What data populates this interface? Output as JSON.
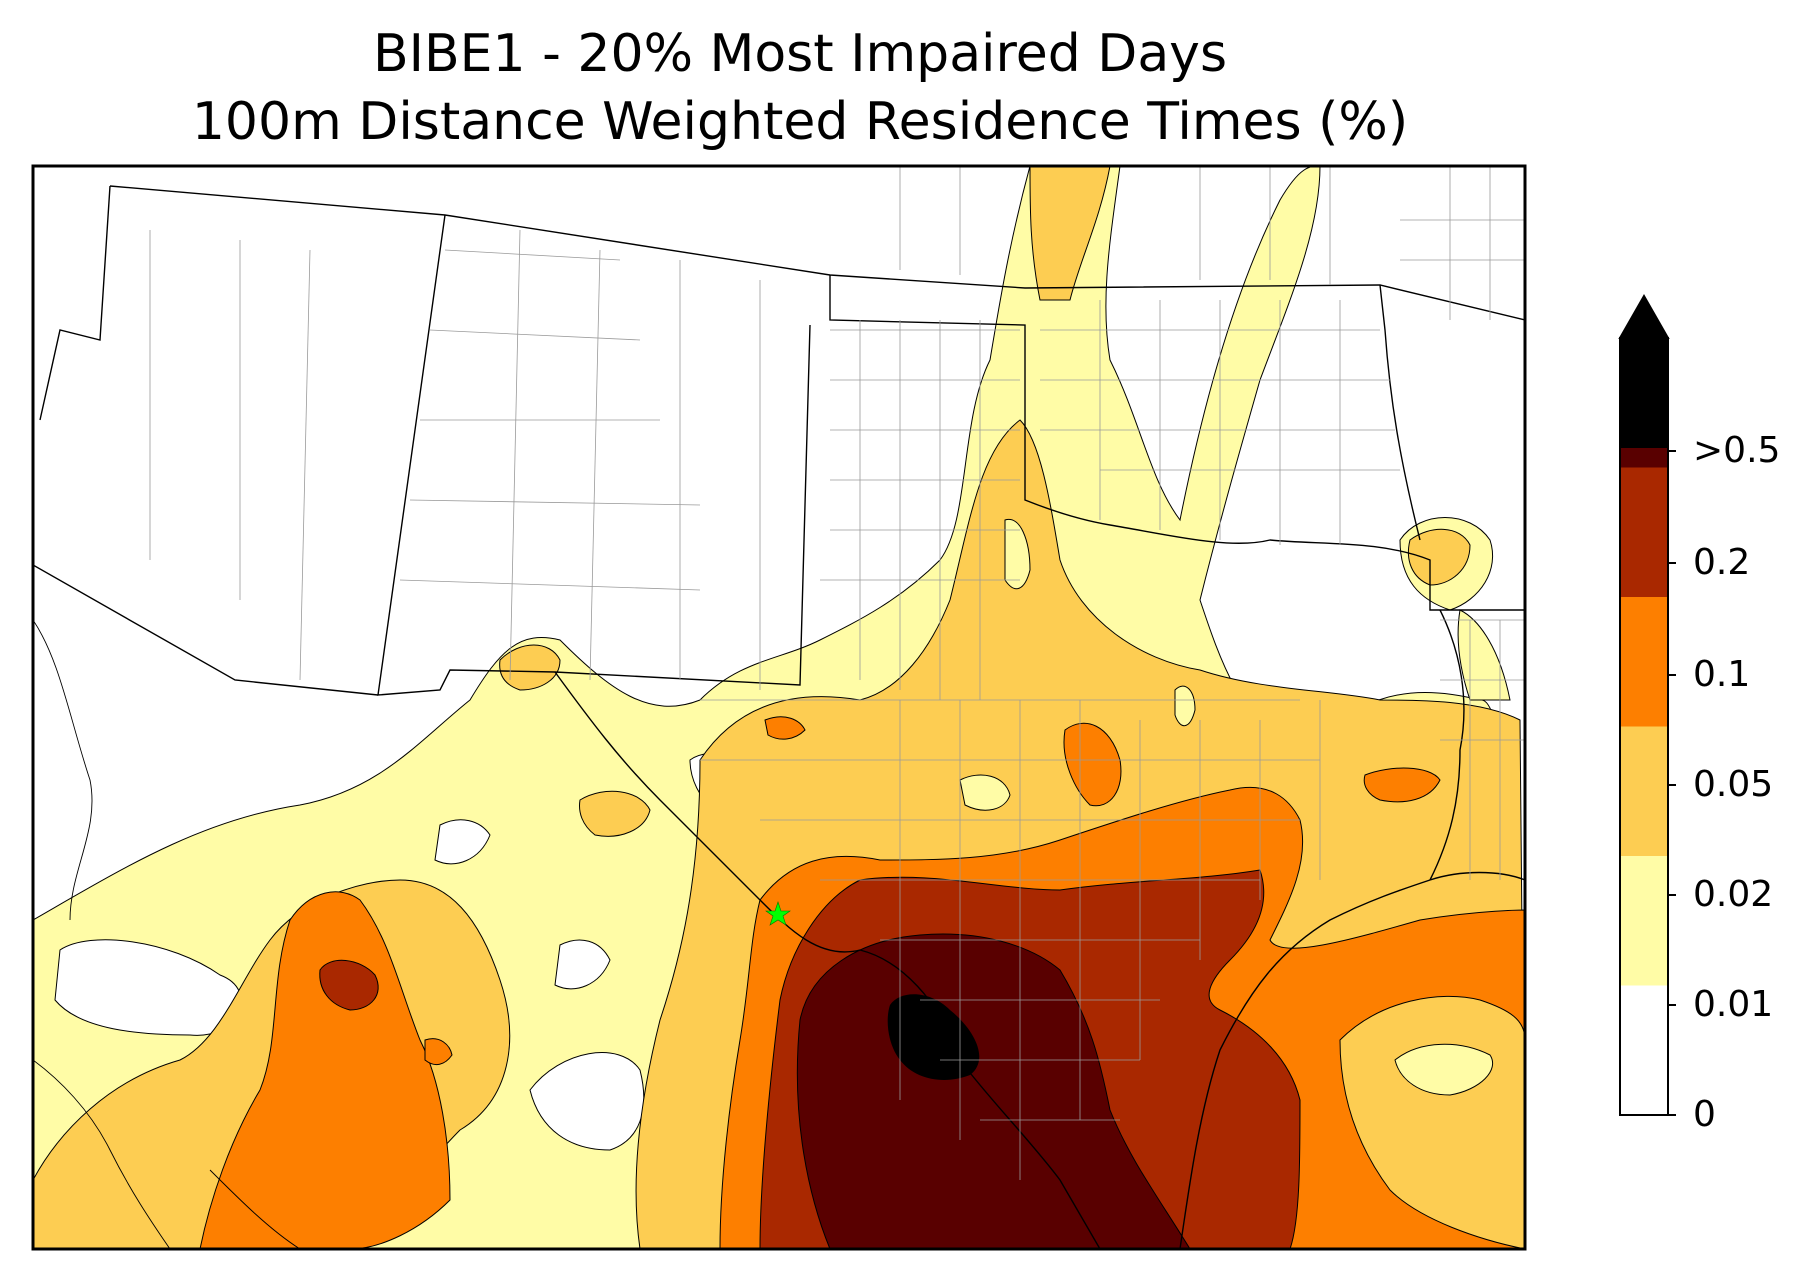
{
  "title": "BIBE1 - 20% Most Impaired Days",
  "subtitle": "100m Distance Weighted Residence Times (%)",
  "colorbar": {
    "extend": "max",
    "bins": [
      {
        "label": "0",
        "color": "#ffffff"
      },
      {
        "label": "0.01",
        "color": "#fffca6"
      },
      {
        "label": "0.02",
        "color": "#fdcd52"
      },
      {
        "label": "0.05",
        "color": "#fd7f00"
      },
      {
        "label": "0.1",
        "color": "#a92800"
      },
      {
        "label": "0.2",
        "color": "#590000"
      },
      {
        "label": ">0.5",
        "color": "#000000"
      }
    ]
  },
  "receptor": {
    "marker": "star",
    "color": "#00ff00"
  }
}
